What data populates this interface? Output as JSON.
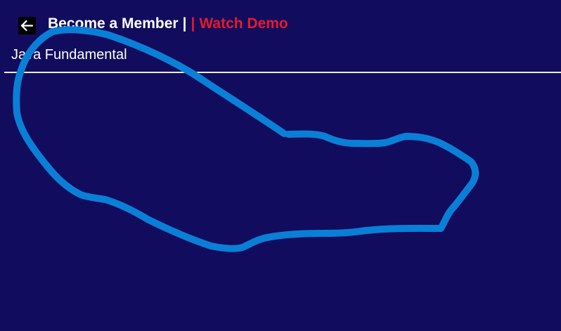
{
  "header": {
    "back_icon": "arrow-left-icon",
    "become_member_label": "Become a Member",
    "separator_white": "|",
    "separator_red": "|",
    "watch_demo_label": "Watch Demo",
    "course_title": "Java Fundamental"
  },
  "colors": {
    "background": "#110c5e",
    "accent_red": "#e8192c",
    "annotation_stroke": "#0a7fd6",
    "divider": "#e9e9f4"
  },
  "annotation": {
    "type": "freehand-loop"
  }
}
